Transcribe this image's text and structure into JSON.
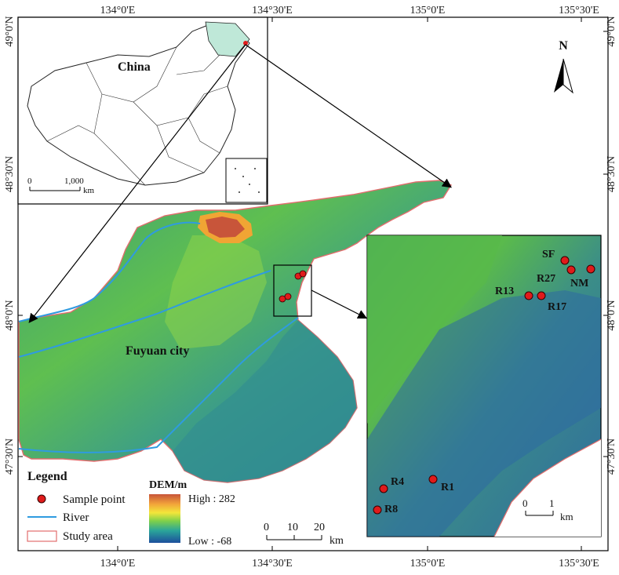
{
  "axes": {
    "top_ticks": [
      "134°0'E",
      "134°30'E",
      "135°0'E",
      "135°30'E"
    ],
    "bottom_ticks": [
      "134°0'E",
      "134°30'E",
      "135°0'E",
      "135°30'E"
    ],
    "left_ticks": [
      "49°0'N",
      "48°30'N",
      "48°0'N",
      "47°30'N"
    ],
    "right_ticks": [
      "49°0'N",
      "48°30'N",
      "48°0'N",
      "47°30'N"
    ]
  },
  "inset_china": {
    "label": "China",
    "scale_ticks": [
      "0",
      "1,000"
    ],
    "scale_unit": "km"
  },
  "main_map": {
    "city_label": "Fuyuan city",
    "scale_ticks": [
      "0",
      "10",
      "20"
    ],
    "scale_unit": "km"
  },
  "north_arrow": {
    "label": "N"
  },
  "detail_inset": {
    "scale_ticks": [
      "0",
      "1"
    ],
    "scale_unit": "km",
    "sample_points": [
      "SF",
      "R27",
      "NM",
      "R13",
      "R17",
      "R4",
      "R1",
      "R8"
    ]
  },
  "legend": {
    "title": "Legend",
    "items": [
      {
        "label": "Sample point",
        "symbol": "red-dot"
      },
      {
        "label": "River",
        "symbol": "blue-line"
      },
      {
        "label": "Study area",
        "symbol": "red-outline-box"
      }
    ],
    "dem_title": "DEM/m",
    "dem_high": "High : 282",
    "dem_low": "Low : -68"
  },
  "colors": {
    "dem_high": "#c8553a",
    "dem_mid": "#7fd04a",
    "dem_low": "#2b6aa8",
    "river": "#2f9be0",
    "sample_point": "#e01b1b",
    "study_outline": "#e26d6d",
    "china_highlight": "#bfe8d8"
  }
}
